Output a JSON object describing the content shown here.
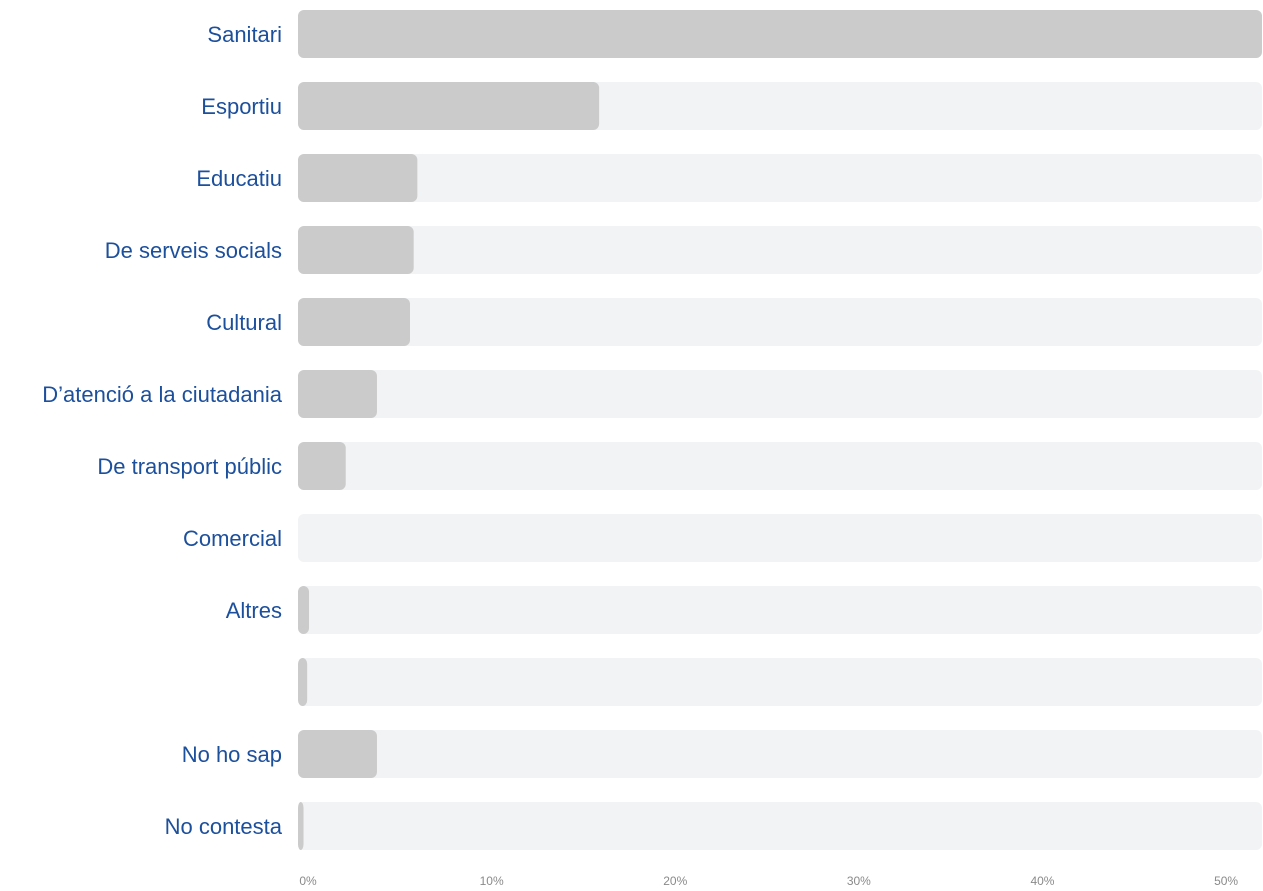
{
  "colors": {
    "bar": "#cbcbcb",
    "track": "#f2f3f5",
    "label": "#1c4f9c",
    "tick": "#8a8a8a"
  },
  "chart_data": {
    "type": "bar",
    "orientation": "horizontal",
    "categories": [
      "Sanitari",
      "Esportiu",
      "Educatiu",
      "De serveis socials",
      "Cultural",
      "D’atenció a la ciutadania",
      "De transport públic",
      "Comercial",
      "Altres",
      "",
      "No ho sap",
      "No contesta"
    ],
    "values": [
      52.5,
      16.4,
      6.5,
      6.3,
      6.1,
      4.3,
      2.6,
      0,
      0.6,
      0.5,
      4.3,
      0.3
    ],
    "xlim": [
      0,
      52.5
    ],
    "xticks": [
      0,
      10,
      20,
      30,
      40,
      50
    ],
    "xtick_labels": [
      "0%",
      "10%",
      "20%",
      "30%",
      "40%",
      "50%"
    ],
    "grid": false,
    "legend": false
  }
}
